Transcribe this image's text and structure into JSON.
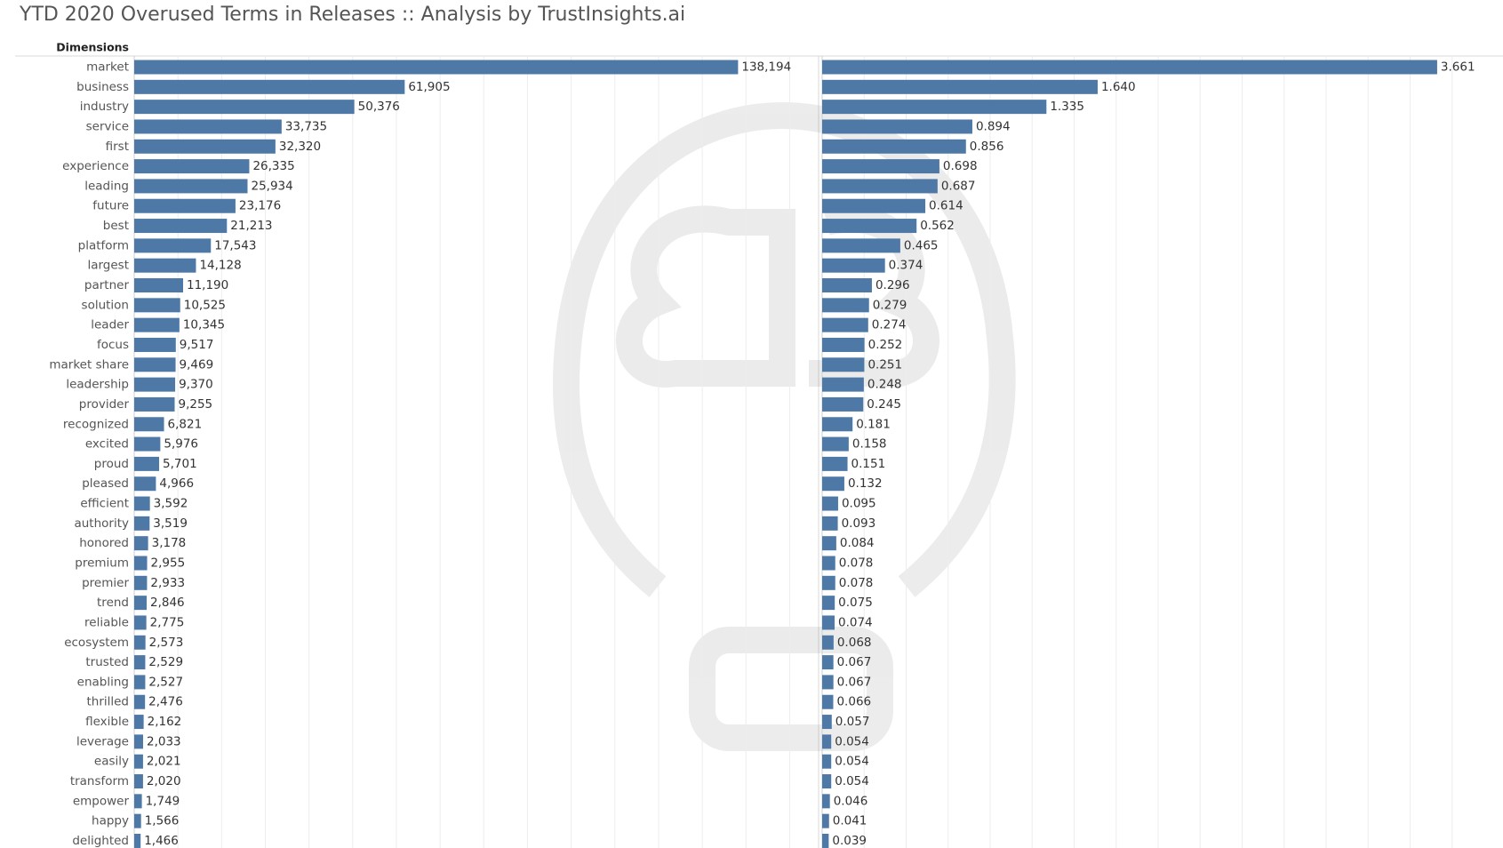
{
  "chart_data": {
    "type": "bar",
    "orientation": "horizontal",
    "title": "YTD 2020 Overused Terms in Releases :: Analysis by TrustInsights.ai",
    "dimension_label": "Dimensions",
    "grid": true,
    "categories": [
      "market",
      "business",
      "industry",
      "service",
      "first",
      "experience",
      "leading",
      "future",
      "best",
      "platform",
      "largest",
      "partner",
      "solution",
      "leader",
      "focus",
      "market share",
      "leadership",
      "provider",
      "recognized",
      "excited",
      "proud",
      "pleased",
      "efficient",
      "authority",
      "honored",
      "premium",
      "premier",
      "trend",
      "reliable",
      "ecosystem",
      "trusted",
      "enabling",
      "thrilled",
      "flexible",
      "leverage",
      "easily",
      "transform",
      "empower",
      "happy",
      "delighted"
    ],
    "series": [
      {
        "color": "#4e79a7",
        "values": [
          138194,
          61905,
          50376,
          33735,
          32320,
          26335,
          25934,
          23176,
          21213,
          17543,
          14128,
          11190,
          10525,
          10345,
          9517,
          9469,
          9370,
          9255,
          6821,
          5976,
          5701,
          4966,
          3592,
          3519,
          3178,
          2955,
          2933,
          2846,
          2775,
          2573,
          2529,
          2527,
          2476,
          2162,
          2033,
          2021,
          2020,
          1749,
          1566,
          1466
        ],
        "value_labels": [
          "138,194",
          "61,905",
          "50,376",
          "33,735",
          "32,320",
          "26,335",
          "25,934",
          "23,176",
          "21,213",
          "17,543",
          "14,128",
          "11,190",
          "10,525",
          "10,345",
          "9,517",
          "9,469",
          "9,370",
          "9,255",
          "6,821",
          "5,976",
          "5,701",
          "4,966",
          "3,592",
          "3,519",
          "3,178",
          "2,955",
          "2,933",
          "2,846",
          "2,775",
          "2,573",
          "2,529",
          "2,527",
          "2,476",
          "2,162",
          "2,033",
          "2,021",
          "2,020",
          "1,749",
          "1,566",
          "1,466"
        ],
        "xlim": [
          0,
          155000
        ],
        "xticks": [
          0,
          10000,
          20000,
          30000,
          40000,
          50000,
          60000,
          70000,
          80000,
          90000,
          100000,
          110000,
          120000,
          130000,
          140000,
          150000
        ]
      },
      {
        "color": "#4e79a7",
        "values": [
          3.661,
          1.64,
          1.335,
          0.894,
          0.856,
          0.698,
          0.687,
          0.614,
          0.562,
          0.465,
          0.374,
          0.296,
          0.279,
          0.274,
          0.252,
          0.251,
          0.248,
          0.245,
          0.181,
          0.158,
          0.151,
          0.132,
          0.095,
          0.093,
          0.084,
          0.078,
          0.078,
          0.075,
          0.074,
          0.068,
          0.067,
          0.067,
          0.066,
          0.057,
          0.054,
          0.054,
          0.054,
          0.046,
          0.041,
          0.039
        ],
        "value_labels": [
          "3.661",
          "1.640",
          "1.335",
          "0.894",
          "0.856",
          "0.698",
          "0.687",
          "0.614",
          "0.562",
          "0.465",
          "0.374",
          "0.296",
          "0.279",
          "0.274",
          "0.252",
          "0.251",
          "0.248",
          "0.245",
          "0.181",
          "0.158",
          "0.151",
          "0.132",
          "0.095",
          "0.093",
          "0.084",
          "0.078",
          "0.078",
          "0.075",
          "0.074",
          "0.068",
          "0.067",
          "0.067",
          "0.066",
          "0.057",
          "0.054",
          "0.054",
          "0.054",
          "0.046",
          "0.041",
          "0.039"
        ],
        "xlim": [
          0,
          4
        ],
        "xticks": [
          0,
          0.25,
          0.5,
          0.75,
          1,
          1.25,
          1.5,
          1.75,
          2,
          2.25,
          2.5,
          2.75,
          3,
          3.25,
          3.5,
          3.75
        ]
      }
    ]
  }
}
